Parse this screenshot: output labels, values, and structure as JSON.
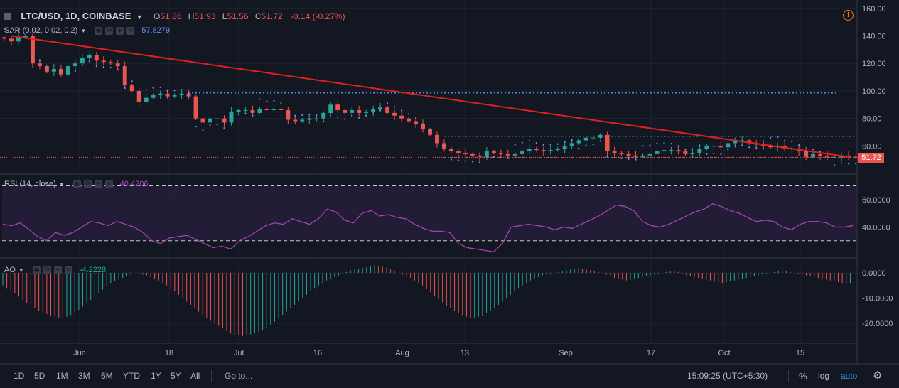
{
  "header": {
    "symbol": "LTC/USD, 1D, COINBASE",
    "o_label": "O",
    "o_value": "51.86",
    "h_label": "H",
    "h_value": "51.93",
    "l_label": "L",
    "l_value": "51.56",
    "c_label": "C",
    "c_value": "51.72",
    "change": "-0.14 (-0.27%)"
  },
  "indicators": {
    "sar": {
      "label": "SAR (0.02, 0.02, 0.2)",
      "value": "57.8279"
    },
    "rsi": {
      "label": "RSI (14, close)",
      "value": "40.4206"
    },
    "ao": {
      "label": "AO",
      "value": "-4.2228"
    }
  },
  "price_tag": "51.72",
  "axis": {
    "price_ticks": [
      "160.00",
      "140.00",
      "120.00",
      "100.00",
      "80.00",
      "60.00"
    ],
    "rsi_ticks": [
      "60.0000",
      "40.0000"
    ],
    "ao_ticks": [
      "0.0000",
      "-10.0000",
      "-20.0000"
    ],
    "time_ticks": [
      "Jun",
      "18",
      "Jul",
      "16",
      "Aug",
      "13",
      "Sep",
      "17",
      "Oct",
      "15"
    ]
  },
  "bottom": {
    "timeframes": [
      "1D",
      "5D",
      "1M",
      "3M",
      "6M",
      "YTD",
      "1Y",
      "5Y",
      "All"
    ],
    "goto": "Go to...",
    "clock": "15:09:25 (UTC+5:30)",
    "percent": "%",
    "log": "log",
    "auto": "auto"
  },
  "colors": {
    "up": "#26a69a",
    "down": "#ef5350",
    "sar": "#5b9cf6",
    "rsi": "#ab47bc",
    "trendline": "#e02020",
    "hline": "#5b9cf6",
    "auto": "#2196f3",
    "warning": "#f57c00"
  },
  "chart_data": {
    "type": "candlestick",
    "price_axis_range": [
      40,
      163
    ],
    "date_range": [
      "2018-05-23",
      "2018-10-21"
    ],
    "candles_close_approx": [
      138,
      136,
      139,
      140,
      120,
      118,
      114,
      116,
      112,
      118,
      120,
      124,
      126,
      122,
      121,
      120,
      118,
      104,
      100,
      92,
      95,
      97,
      98,
      96,
      97,
      98,
      96,
      80,
      77,
      80,
      80,
      77,
      85,
      86,
      86,
      84,
      87,
      86,
      87,
      86,
      79,
      78,
      79,
      80,
      80,
      84,
      90,
      86,
      84,
      86,
      84,
      85,
      87,
      88,
      84,
      82,
      80,
      78,
      76,
      72,
      68,
      62,
      58,
      56,
      55,
      54,
      53,
      52,
      56,
      55,
      54,
      53,
      54,
      56,
      58,
      57,
      56,
      57,
      58,
      60,
      62,
      64,
      66,
      66,
      68,
      56,
      55,
      54,
      53,
      52,
      53,
      54,
      56,
      57,
      57,
      56,
      54,
      55,
      58,
      60,
      60,
      59,
      62,
      64,
      64,
      62,
      61,
      60,
      59,
      60,
      58,
      58,
      56,
      52,
      54,
      53,
      52,
      52,
      53,
      52,
      51.72
    ],
    "sar_dots_note": "parabolic SAR dots above/below price",
    "trendline": {
      "from": [
        "2018-05-25",
        140
      ],
      "to": [
        "2018-10-20",
        52
      ]
    },
    "hlines": [
      98.5,
      67,
      51.5
    ],
    "rsi_approx": [
      42,
      41,
      43,
      38,
      33,
      30,
      36,
      34,
      36,
      40,
      44,
      43,
      41,
      44,
      42,
      40,
      36,
      30,
      28,
      32,
      33,
      34,
      31,
      28,
      25,
      26,
      24,
      30,
      33,
      37,
      41,
      43,
      42,
      46,
      44,
      42,
      46,
      53,
      51,
      45,
      43,
      50,
      52,
      48,
      49,
      47,
      46,
      42,
      39,
      37,
      37,
      36,
      28,
      25,
      24,
      23,
      22,
      28,
      40,
      41,
      42,
      41,
      40,
      38,
      40,
      39,
      42,
      45,
      48,
      52,
      56,
      55,
      52,
      44,
      41,
      40,
      42,
      45,
      48,
      51,
      53,
      57,
      55,
      52,
      50,
      47,
      44,
      45,
      44,
      40,
      38,
      42,
      44,
      44,
      43,
      40,
      40,
      41
    ],
    "rsi_bands": [
      70,
      30
    ],
    "ao_approx": [
      -5,
      -8,
      -12,
      -15,
      -17,
      -18,
      -16,
      -12,
      -8,
      -4,
      -2,
      0,
      -1,
      -3,
      -6,
      -10,
      -14,
      -18,
      -21,
      -24,
      -25,
      -24,
      -22,
      -18,
      -14,
      -10,
      -6,
      -3,
      -1,
      1,
      2,
      3,
      2,
      0,
      -2,
      -5,
      -9,
      -13,
      -16,
      -18,
      -17,
      -14,
      -10,
      -6,
      -3,
      -1,
      0,
      1,
      2,
      1,
      0,
      -2,
      -3,
      -2,
      -1,
      0,
      1,
      -1,
      -2,
      -3,
      -4,
      -3,
      -2,
      -1,
      0,
      1,
      0,
      -1,
      -2,
      -3,
      -4
    ]
  }
}
